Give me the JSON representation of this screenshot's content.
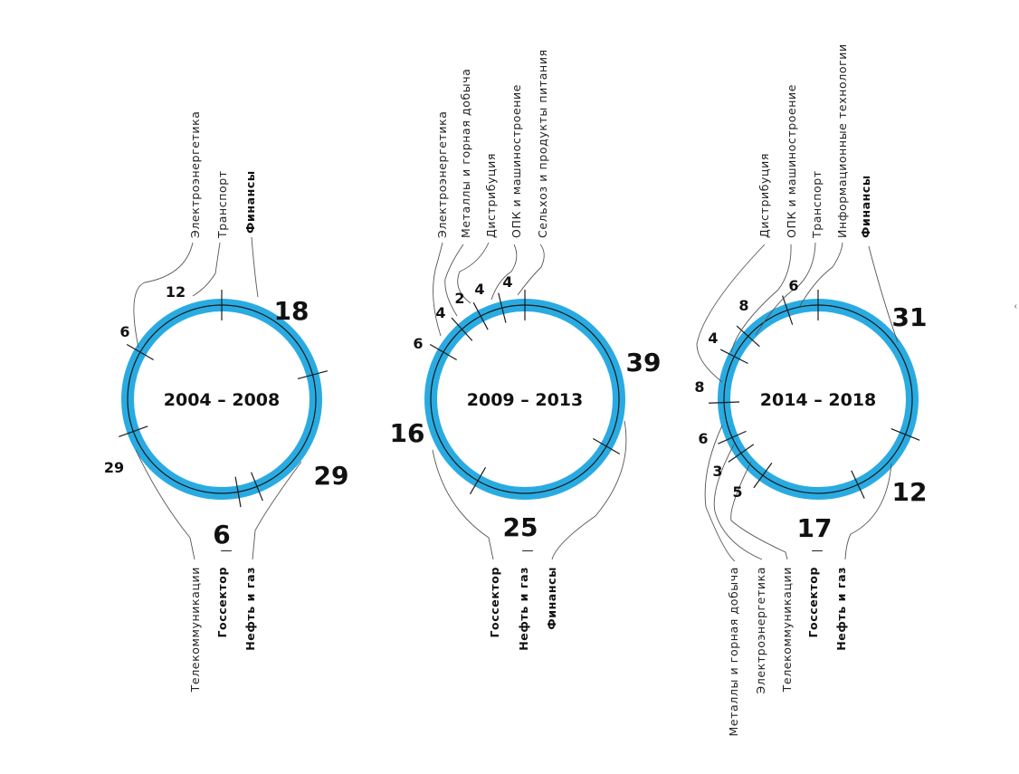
{
  "edge_mark": "‹",
  "colors": {
    "ring": "#29abe2",
    "line": "#1a1a1a"
  },
  "chart_data": [
    {
      "type": "pie",
      "title": "2004 – 2008",
      "unit": "%",
      "segments": [
        {
          "label": "Финансы",
          "value": 18,
          "bold": true
        },
        {
          "label": "Нефть и газ",
          "value": 29,
          "bold": true
        },
        {
          "label": "Госсектор",
          "value": 6,
          "bold": true
        },
        {
          "label": "Телекоммуникации",
          "value": 29,
          "bold": false
        },
        {
          "label": "Электроэнергетика",
          "value": 6,
          "bold": false
        },
        {
          "label": "Транспорт",
          "value": 12,
          "bold": false
        }
      ]
    },
    {
      "type": "pie",
      "title": "2009 – 2013",
      "unit": "%",
      "segments": [
        {
          "label": "Финансы",
          "value": 39,
          "bold": true
        },
        {
          "label": "Нефть и газ",
          "value": 25,
          "bold": true
        },
        {
          "label": "Госсектор",
          "value": 16,
          "bold": true
        },
        {
          "label": "Электроэнергетика",
          "value": 6,
          "bold": false
        },
        {
          "label": "Металлы и горная добыча",
          "value": 4,
          "bold": false
        },
        {
          "label": "Дистрибуция",
          "value": 2,
          "bold": false
        },
        {
          "label": "ОПК и машиностроение",
          "value": 4,
          "bold": false
        },
        {
          "label": "Сельхоз и продукты питания",
          "value": 4,
          "bold": false
        }
      ]
    },
    {
      "type": "pie",
      "title": "2014 – 2018",
      "unit": "%",
      "segments": [
        {
          "label": "Финансы",
          "value": 31,
          "bold": true
        },
        {
          "label": "Нефть и газ",
          "value": 12,
          "bold": true
        },
        {
          "label": "Госсектор",
          "value": 17,
          "bold": true
        },
        {
          "label": "Телекоммуникации",
          "value": 5,
          "bold": false
        },
        {
          "label": "Электроэнергетика",
          "value": 3,
          "bold": false
        },
        {
          "label": "Металлы и горная добыча",
          "value": 6,
          "bold": false
        },
        {
          "label": "Дистрибуция",
          "value": 8,
          "bold": false
        },
        {
          "label": "ОПК и машиностроение",
          "value": 4,
          "bold": false
        },
        {
          "label": "Транспорт",
          "value": 8,
          "bold": false
        },
        {
          "label": "Информационные технологии",
          "value": 6,
          "bold": false
        }
      ]
    }
  ]
}
